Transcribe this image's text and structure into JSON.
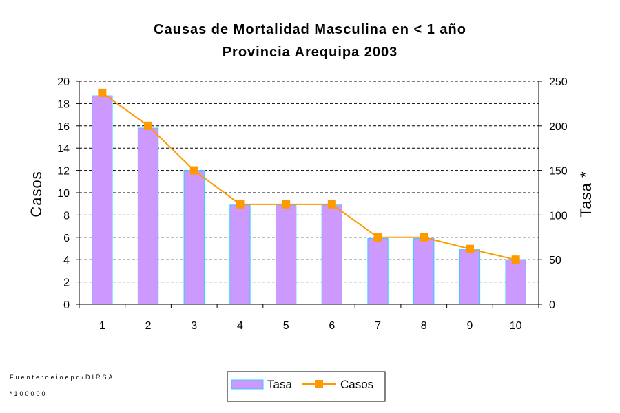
{
  "chart_data": {
    "type": "bar",
    "title": "Causas de Mortalidad Masculina en < 1 año",
    "subtitle": "Provincia Arequipa 2003",
    "categories": [
      "1",
      "2",
      "3",
      "4",
      "5",
      "6",
      "7",
      "8",
      "9",
      "10"
    ],
    "series": [
      {
        "name": "Tasa",
        "type": "bar",
        "axis": "left",
        "values": [
          18.7,
          15.8,
          12,
          8.9,
          8.9,
          8.9,
          5.9,
          5.9,
          4.9,
          4
        ]
      },
      {
        "name": "Casos",
        "type": "line",
        "axis": "right",
        "values": [
          237,
          200,
          150,
          112,
          112,
          112,
          75,
          75,
          62,
          50
        ]
      }
    ],
    "ylabel": "Casos",
    "y2label": "Tasa *",
    "ylim": [
      0,
      20
    ],
    "y2lim": [
      0,
      250
    ],
    "yticks": [
      "0",
      "2",
      "4",
      "6",
      "8",
      "10",
      "12",
      "14",
      "16",
      "18",
      "20"
    ],
    "y2ticks": [
      "0",
      "50",
      "100",
      "150",
      "200",
      "250"
    ],
    "grid": true,
    "legend_position": "bottom-center",
    "colors": {
      "bar_fill": "#cc99ff",
      "bar_edge": "#33ccff",
      "line": "#ff9900",
      "grid": "#000000"
    }
  },
  "footnotes": {
    "source": "Fuente:oeioepd/DIRSA",
    "scale": "*100000"
  }
}
